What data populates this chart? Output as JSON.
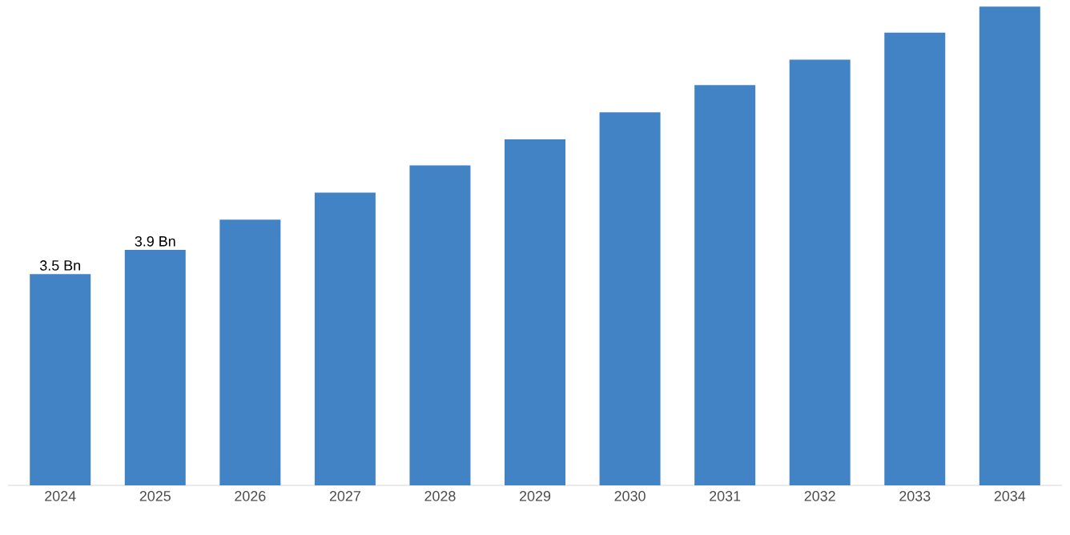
{
  "chart_data": {
    "type": "bar",
    "categories": [
      "2024",
      "2025",
      "2026",
      "2027",
      "2028",
      "2029",
      "2030",
      "2031",
      "2032",
      "2033",
      "2034"
    ],
    "values": [
      3.5,
      3.9,
      4.4,
      4.85,
      5.3,
      5.73,
      6.18,
      6.63,
      7.05,
      7.5,
      7.93
    ],
    "value_labels": [
      "3.5 Bn",
      "3.9 Bn",
      null,
      null,
      null,
      null,
      null,
      null,
      null,
      null,
      null
    ],
    "ylim": [
      0,
      8
    ],
    "color": "#4283c6"
  }
}
